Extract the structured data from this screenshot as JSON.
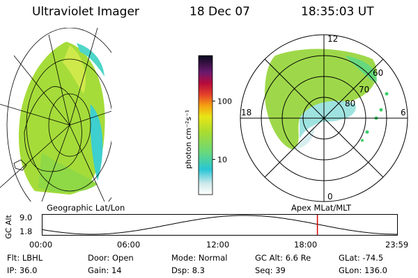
{
  "header": {
    "instrument": "Ultraviolet Imager",
    "date": "18 Dec 07",
    "time": "18:35:03 UT"
  },
  "colorbar": {
    "unit_label": "photon cm⁻²s⁻¹",
    "ticks": [
      {
        "value": 100,
        "label": "100"
      },
      {
        "value": 10,
        "label": "10"
      }
    ],
    "min": 2.5,
    "max": 600,
    "scale": "log"
  },
  "polar_plot": {
    "mlt_labels": {
      "top": "12",
      "left": "18",
      "right": "6",
      "bottom": "0"
    },
    "lat_labels": [
      "60",
      "70",
      "80"
    ]
  },
  "panel_labels": {
    "left": "Geographic Lat/Lon",
    "right": "Apex MLat/MLT"
  },
  "gc_alt_plot": {
    "ylabel": "GC Alt",
    "y_ticks": [
      "9.0",
      "1.8"
    ],
    "x_ticks": [
      "00:00",
      "06:00",
      "12:00",
      "18:00",
      "23:59"
    ],
    "marker_hour": 18.58,
    "marker_color": "#d40000"
  },
  "info": {
    "row1": [
      {
        "label": "Flt:",
        "value": "LBHL"
      },
      {
        "label": "Door:",
        "value": "Open"
      },
      {
        "label": "Mode:",
        "value": "Normal"
      },
      {
        "label": "GC Alt:",
        "value": "6.6 Re"
      },
      {
        "label": "GLat:",
        "value": "-74.5"
      }
    ],
    "row2": [
      {
        "label": "IP:",
        "value": "36.0"
      },
      {
        "label": "Gain:",
        "value": "14"
      },
      {
        "label": "Dsp:",
        "value": "8.3"
      },
      {
        "label": "Seq:",
        "value": "39"
      },
      {
        "label": "GLon:",
        "value": "136.0"
      }
    ]
  }
}
